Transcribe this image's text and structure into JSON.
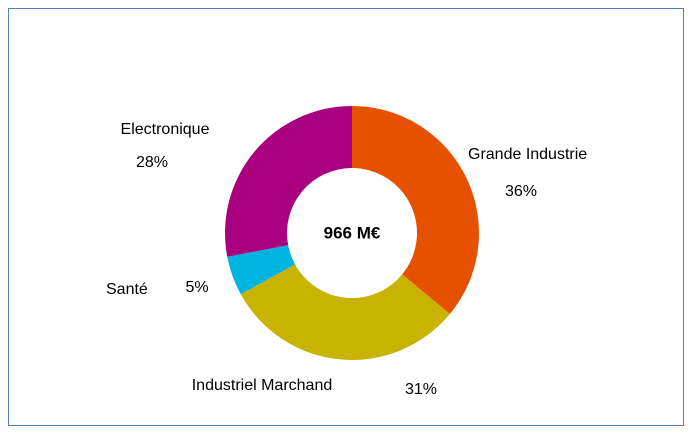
{
  "chart_data": {
    "type": "donut",
    "center_label": "966 M€",
    "categories": [
      "Grande Industrie",
      "Industriel Marchand",
      "Santé",
      "Electronique"
    ],
    "values": [
      36,
      31,
      5,
      28
    ],
    "value_labels": [
      "36%",
      "31%",
      "5%",
      "28%"
    ],
    "colors": [
      "#e65100",
      "#c8b400",
      "#00b4e0",
      "#a8007f"
    ]
  }
}
